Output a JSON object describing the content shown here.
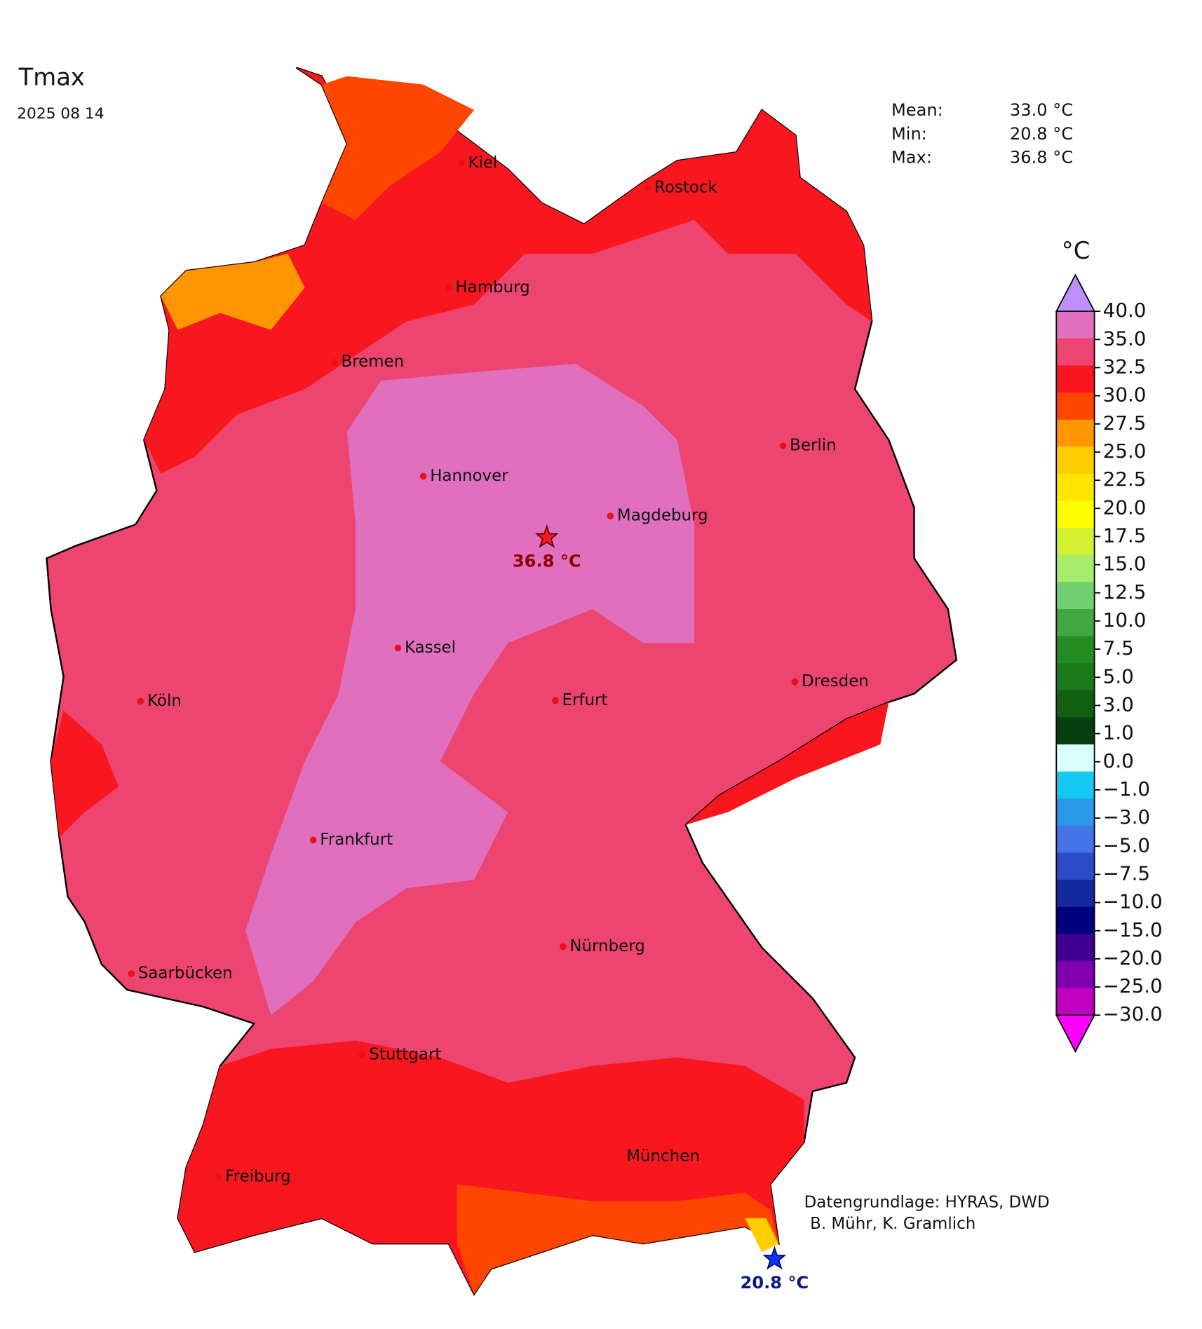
{
  "title": "Tmax",
  "date": "2025 08 14",
  "stats": [
    {
      "label": "Mean:",
      "value": "33.0 °C"
    },
    {
      "label": "Min:",
      "value": "20.8 °C"
    },
    {
      "label": "Max:",
      "value": "36.8 °C"
    }
  ],
  "colorbar": {
    "unit": "°C",
    "ticks": [
      "40.0",
      "35.0",
      "32.5",
      "30.0",
      "27.5",
      "25.0",
      "22.5",
      "20.0",
      "17.5",
      "15.0",
      "12.5",
      "10.0",
      "7.5",
      "5.0",
      "3.0",
      "1.0",
      "0.0",
      "−1.0",
      "−3.0",
      "−5.0",
      "−7.5",
      "−10.0",
      "−15.0",
      "−20.0",
      "−25.0",
      "−30.0"
    ],
    "colors": [
      "#e070be",
      "#ee4470",
      "#f8171f",
      "#ff4500",
      "#ff9500",
      "#ffcc00",
      "#ffe500",
      "#ffff00",
      "#d4f032",
      "#a8ec6c",
      "#70d070",
      "#40a840",
      "#228b22",
      "#1a7a1a",
      "#106010",
      "#064010",
      "#d9ffff",
      "#15c8f0",
      "#2a9ae8",
      "#4472e8",
      "#2b4cc8",
      "#1428a0",
      "#000080",
      "#400090",
      "#8000b0",
      "#c000c0"
    ],
    "extend_colors": [
      "#bf8fff",
      "#ff00ff"
    ]
  },
  "cities": [
    "Kiel",
    "Rostock",
    "Hamburg",
    "Bremen",
    "Berlin",
    "Hannover",
    "Magdeburg",
    "Kassel",
    "Köln",
    "Dresden",
    "Erfurt",
    "Frankfurt",
    "Nürnberg",
    "Saarbücken",
    "Stuttgart",
    "München",
    "Freiburg"
  ],
  "extremes": {
    "max": "36.8 °C",
    "min": "20.8 °C"
  },
  "credits": [
    "Datengrundlage: HYRAS, DWD",
    "B. Mühr, K. Gramlich"
  ]
}
